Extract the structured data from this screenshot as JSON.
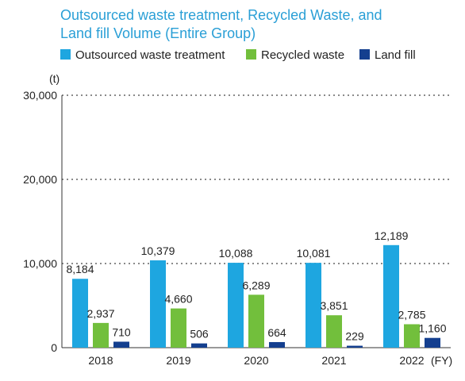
{
  "chart_data": {
    "type": "bar",
    "title_lines": [
      "Outsourced waste treatment, Recycled Waste, and",
      "Land fill Volume (Entire Group)"
    ],
    "y_unit": "(t)",
    "x_unit": "(FY)",
    "categories": [
      "2018",
      "2019",
      "2020",
      "2021",
      "2022"
    ],
    "y_ticks": [
      {
        "value": 0,
        "label": "0"
      },
      {
        "value": 10000,
        "label": "10,000"
      },
      {
        "value": 20000,
        "label": "20,000"
      },
      {
        "value": 30000,
        "label": "30,000"
      }
    ],
    "ylim": [
      0,
      30000
    ],
    "grid": "dotted horizontal",
    "legend_position": "top",
    "series": [
      {
        "name": "Outsourced waste treatment",
        "color": "#1ea6e0",
        "values": [
          8184,
          10379,
          10088,
          10081,
          12189
        ],
        "labels": [
          "8,184",
          "10,379",
          "10,088",
          "10,081",
          "12,189"
        ]
      },
      {
        "name": "Recycled waste",
        "color": "#72bf3c",
        "values": [
          2937,
          4660,
          6289,
          3851,
          2785
        ],
        "labels": [
          "2,937",
          "4,660",
          "6,289",
          "3,851",
          "2,785"
        ]
      },
      {
        "name": "Land fill",
        "color": "#143f8f",
        "values": [
          710,
          506,
          664,
          229,
          1160
        ],
        "labels": [
          "710",
          "506",
          "664",
          "229",
          "1,160"
        ]
      }
    ]
  }
}
